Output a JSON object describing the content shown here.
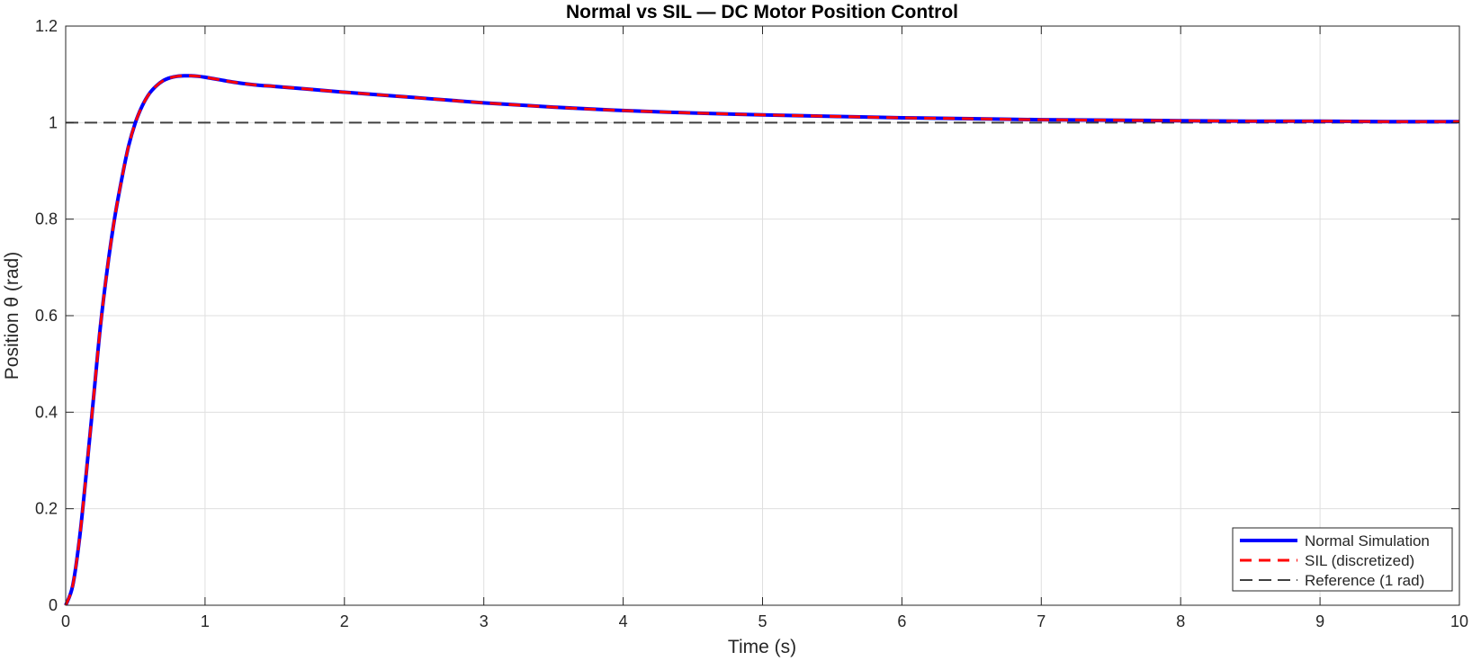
{
  "chart_data": {
    "type": "line",
    "title": "Normal vs SIL — DC Motor Position Control",
    "xlabel": "Time (s)",
    "ylabel": "Position θ (rad)",
    "xlim": [
      0,
      10
    ],
    "ylim": [
      0,
      1.2
    ],
    "x_ticks": [
      0,
      1,
      2,
      3,
      4,
      5,
      6,
      7,
      8,
      9,
      10
    ],
    "x_tick_labels": [
      "0",
      "1",
      "2",
      "3",
      "4",
      "5",
      "6",
      "7",
      "8",
      "9",
      "10"
    ],
    "y_ticks": [
      0,
      0.2,
      0.4,
      0.6,
      0.8,
      1.0,
      1.2
    ],
    "y_tick_labels": [
      "0",
      "0.2",
      "0.4",
      "0.6",
      "0.8",
      "1",
      "1.2"
    ],
    "grid": true,
    "legend_position": "bottom-right",
    "x": [
      0,
      0.05,
      0.1,
      0.15,
      0.2,
      0.25,
      0.3,
      0.35,
      0.4,
      0.45,
      0.5,
      0.55,
      0.6,
      0.65,
      0.7,
      0.75,
      0.8,
      0.85,
      0.9,
      0.95,
      1.0,
      1.1,
      1.2,
      1.3,
      1.4,
      1.5,
      1.75,
      2.0,
      2.5,
      3.0,
      3.5,
      4.0,
      4.5,
      5.0,
      5.5,
      6.0,
      6.5,
      7.0,
      7.5,
      8.0,
      8.5,
      9.0,
      9.5,
      10.0
    ],
    "series": [
      {
        "name": "Normal Simulation",
        "color": "#0000ff",
        "style": "solid",
        "values": [
          0,
          0.04,
          0.14,
          0.28,
          0.43,
          0.58,
          0.7,
          0.8,
          0.88,
          0.95,
          1.0,
          1.035,
          1.06,
          1.076,
          1.087,
          1.093,
          1.096,
          1.097,
          1.097,
          1.096,
          1.094,
          1.089,
          1.084,
          1.08,
          1.077,
          1.075,
          1.069,
          1.063,
          1.052,
          1.041,
          1.032,
          1.025,
          1.02,
          1.016,
          1.013,
          1.01,
          1.008,
          1.006,
          1.005,
          1.004,
          1.003,
          1.003,
          1.002,
          1.002
        ]
      },
      {
        "name": "SIL (discretized)",
        "color": "#ff0000",
        "style": "dashed",
        "values": [
          0,
          0.04,
          0.14,
          0.28,
          0.43,
          0.58,
          0.7,
          0.8,
          0.88,
          0.95,
          1.0,
          1.035,
          1.06,
          1.076,
          1.087,
          1.093,
          1.096,
          1.097,
          1.097,
          1.096,
          1.094,
          1.089,
          1.084,
          1.08,
          1.077,
          1.075,
          1.069,
          1.063,
          1.052,
          1.041,
          1.032,
          1.025,
          1.02,
          1.016,
          1.013,
          1.01,
          1.008,
          1.006,
          1.005,
          1.004,
          1.003,
          1.003,
          1.002,
          1.002
        ]
      },
      {
        "name": "Reference (1 rad)",
        "color": "#404040",
        "style": "dashed",
        "values": [
          1,
          1,
          1,
          1,
          1,
          1,
          1,
          1,
          1,
          1,
          1,
          1,
          1,
          1,
          1,
          1,
          1,
          1,
          1,
          1,
          1,
          1,
          1,
          1,
          1,
          1,
          1,
          1,
          1,
          1,
          1,
          1,
          1,
          1,
          1,
          1,
          1,
          1,
          1,
          1,
          1,
          1,
          1,
          1
        ]
      }
    ]
  }
}
